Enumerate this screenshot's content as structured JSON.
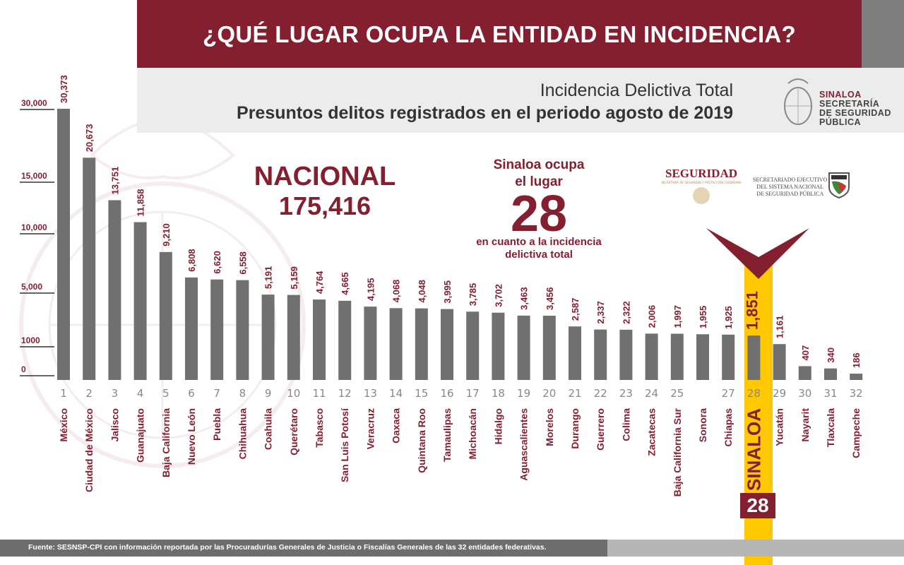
{
  "header": {
    "title": "¿QUÉ LUGAR OCUPA LA ENTIDAD EN INCIDENCIA?",
    "subtitle_1": "Incidencia Delictiva Total",
    "subtitle_2": "Presuntos delitos registrados en el periodo agosto de 2019"
  },
  "logos": {
    "ssp_line1": "SINALOA",
    "ssp_line2": "SECRETARÍA",
    "ssp_line3": "DE SEGURIDAD",
    "ssp_line4": "PÚBLICA",
    "seguridad_word": "SEGURIDAD",
    "seguridad_small": "SECRETARÍA DE SEGURIDAD Y PROTECCIÓN CIUDADANA",
    "sesnsp_line1": "SECRETARIADO EJECUTIVO",
    "sesnsp_line2": "DEL SISTEMA NACIONAL",
    "sesnsp_line3": "DE SEGURIDAD PÚBLICA"
  },
  "nacional": {
    "label": "NACIONAL",
    "total": "175,416"
  },
  "highlight": {
    "line1": "Sinaloa ocupa",
    "line2": "el lugar",
    "rank": "28",
    "line3": "en cuanto a la incidencia",
    "line4": "delictiva total",
    "state_label": "SINALOA",
    "value_label": "1,851",
    "badge": "28",
    "colors": {
      "accent": "#841f30",
      "highlight": "#ffc800",
      "bar": "#707070"
    }
  },
  "footer": {
    "source": "Fuente: SESNSP-CPI con información reportada por las Procuradurías Generales de Justicia o Fiscalías Generales de las 32 entidades federativas."
  },
  "chart_data": {
    "type": "bar",
    "title": "Incidencia Delictiva Total",
    "xlabel": "",
    "ylabel": "",
    "y_ticks": [
      "30,000",
      "15,000",
      "10,000",
      "5,000",
      "1000",
      "0"
    ],
    "y_tick_values": [
      30000,
      15000,
      10000,
      5000,
      1000,
      0
    ],
    "ylim": [
      0,
      30373
    ],
    "grid": false,
    "legend": "none",
    "ranks": [
      "1",
      "2",
      "3",
      "4",
      "5",
      "6",
      "7",
      "8",
      "9",
      "10",
      "11",
      "12",
      "13",
      "14",
      "15",
      "16",
      "17",
      "18",
      "19",
      "20",
      "21",
      "22",
      "23",
      "24",
      "25",
      "",
      "27",
      "28",
      "29",
      "30",
      "31",
      "32"
    ],
    "categories": [
      "México",
      "Ciudad de México",
      "Jalisco",
      "Guanajuato",
      "Baja California",
      "Nuevo León",
      "Puebla",
      "Chihuahua",
      "Coahuila",
      "Querétaro",
      "Tabasco",
      "San Luis Potosí",
      "Veracruz",
      "Oaxaca",
      "Quintana Roo",
      "Tamaulipas",
      "Michoacán",
      "Hidalgo",
      "Aguascalientes",
      "Morelos",
      "Durango",
      "Guerrero",
      "Colima",
      "Zacatecas",
      "Baja California Sur",
      "Sonora",
      "Chiapas",
      "SINALOA",
      "Yucatán",
      "Nayarit",
      "Tlaxcala",
      "Campeche"
    ],
    "values": [
      30373,
      20673,
      13751,
      11858,
      9210,
      6808,
      6620,
      6558,
      5191,
      5159,
      4764,
      4665,
      4195,
      4068,
      4048,
      3995,
      3785,
      3702,
      3463,
      3456,
      2587,
      2337,
      2322,
      2006,
      1997,
      1955,
      1925,
      1851,
      1161,
      407,
      340,
      186
    ],
    "value_labels": [
      "30,373",
      "20,673",
      "13,751",
      "11,858",
      "9,210",
      "6,808",
      "6,620",
      "6,558",
      "5,191",
      "5,159",
      "4,764",
      "4,665",
      "4,195",
      "4,068",
      "4,048",
      "3,995",
      "3,785",
      "3,702",
      "3,463",
      "3,456",
      "2,587",
      "2,337",
      "2,322",
      "2,006",
      "1,997",
      "1,955",
      "1,925",
      "1,851",
      "1,161",
      "407",
      "340",
      "186"
    ],
    "highlight_index": 27
  }
}
